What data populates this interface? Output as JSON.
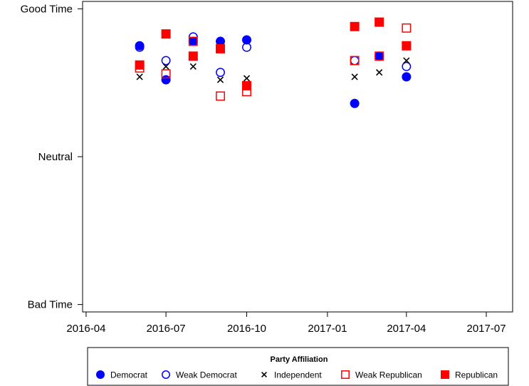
{
  "chart_data": {
    "type": "scatter",
    "title": "",
    "xlabel": "",
    "ylabel": "",
    "x_ticks": [
      "2016-04",
      "2016-07",
      "2016-10",
      "2017-01",
      "2017-04",
      "2017-07"
    ],
    "x_range": [
      "2016-03-28",
      "2017-07-31"
    ],
    "y_ticks": [
      {
        "value": 1,
        "label": "Bad Time"
      },
      {
        "value": 2,
        "label": "Neutral"
      },
      {
        "value": 3,
        "label": "Good Time"
      }
    ],
    "ylim": [
      0.95,
      3.05
    ],
    "legend": {
      "title": "Party Affiliation",
      "position": "bottom",
      "items": [
        "Democrat",
        "Weak Democrat",
        "Independent",
        "Weak Republican",
        "Republican"
      ]
    },
    "series": [
      {
        "name": "Democrat",
        "marker": "filled-circle",
        "color": "#0000ff",
        "x": [
          "2016-06-01",
          "2016-07-01",
          "2016-08-01",
          "2016-09-01",
          "2016-10-01",
          "2017-02-01",
          "2017-03-01",
          "2017-04-01"
        ],
        "y": [
          2.75,
          2.52,
          2.78,
          2.78,
          2.79,
          2.36,
          2.68,
          2.54
        ]
      },
      {
        "name": "Weak Democrat",
        "marker": "open-circle",
        "color": "#0000ff",
        "x": [
          "2016-06-01",
          "2016-07-01",
          "2016-08-01",
          "2016-09-01",
          "2016-10-01",
          "2017-02-01",
          "2017-03-01",
          "2017-04-01"
        ],
        "y": [
          2.74,
          2.65,
          2.81,
          2.57,
          2.74,
          2.65,
          2.68,
          2.61
        ]
      },
      {
        "name": "Independent",
        "marker": "x",
        "color": "#000000",
        "x": [
          "2016-06-01",
          "2016-07-01",
          "2016-08-01",
          "2016-09-01",
          "2016-10-01",
          "2017-02-01",
          "2017-03-01",
          "2017-04-01"
        ],
        "y": [
          2.54,
          2.61,
          2.61,
          2.52,
          2.53,
          2.54,
          2.57,
          2.65
        ]
      },
      {
        "name": "Weak Republican",
        "marker": "open-square",
        "color": "#ff0000",
        "x": [
          "2016-06-01",
          "2016-07-01",
          "2016-08-01",
          "2016-09-01",
          "2016-10-01",
          "2017-02-01",
          "2017-03-01",
          "2017-04-01"
        ],
        "y": [
          2.6,
          2.56,
          2.78,
          2.41,
          2.44,
          2.65,
          2.68,
          2.87
        ]
      },
      {
        "name": "Republican",
        "marker": "filled-square",
        "color": "#ff0000",
        "x": [
          "2016-06-01",
          "2016-07-01",
          "2016-08-01",
          "2016-09-01",
          "2016-10-01",
          "2017-02-01",
          "2017-03-01",
          "2017-04-01"
        ],
        "y": [
          2.62,
          2.83,
          2.68,
          2.73,
          2.48,
          2.88,
          2.91,
          2.75
        ]
      }
    ]
  }
}
